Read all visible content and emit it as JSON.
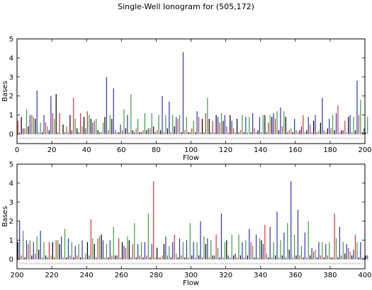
{
  "chart_data": {
    "title": "Single-Well Ionogram for (505,172)",
    "colors": {
      "T": "#e03030",
      "A": "#3ca03c",
      "C": "#000000",
      "G": "#3030c8"
    },
    "flow_order_seq": "TACG",
    "charts": [
      {
        "type": "bar",
        "xlabel": "Flow",
        "ylabel": "Bases",
        "xlim": [
          0,
          200
        ],
        "ylim": [
          -0.5,
          5
        ],
        "xticks": [
          0,
          20,
          40,
          60,
          80,
          100,
          120,
          140,
          160,
          180,
          200
        ],
        "yticks": [
          0,
          1,
          2,
          3,
          4,
          5
        ],
        "xtick_labels": [
          "0",
          "20",
          "40",
          "60",
          "80",
          "100",
          "120",
          "140",
          "160",
          "180",
          "200"
        ],
        "ytick_labels": [
          "0",
          "1",
          "2",
          "3",
          "4",
          "5"
        ],
        "values": [
          0.7,
          0.1,
          0.9,
          0.3,
          0.3,
          1.3,
          0.4,
          1.0,
          1.0,
          0.9,
          0.8,
          2.3,
          0.1,
          0.6,
          0.1,
          1.0,
          0.6,
          0.4,
          0.2,
          2.0,
          1.1,
          0.8,
          2.1,
          0.1,
          1.1,
          0.0,
          0.5,
          0.1,
          0.4,
          0.1,
          1.0,
          0.2,
          1.9,
          0.8,
          0.3,
          0.1,
          1.1,
          0.4,
          0.9,
          0.3,
          1.2,
          1.0,
          0.8,
          0.6,
          0.7,
          0.8,
          0.2,
          0.1,
          0.1,
          0.6,
          0.9,
          3.0,
          0.2,
          1.0,
          0.8,
          2.4,
          0.2,
          0.1,
          0.1,
          0.5,
          0.2,
          1.3,
          0.3,
          1.0,
          0.1,
          2.1,
          0.2,
          0.1,
          0.3,
          0.8,
          0.1,
          0.1,
          0.2,
          1.1,
          0.2,
          0.3,
          0.3,
          1.1,
          0.4,
          0.1,
          0.2,
          1.0,
          0.2,
          2.0,
          0.1,
          1.0,
          0.3,
          1.7,
          0.1,
          1.0,
          0.4,
          0.9,
          0.8,
          1.0,
          0.1,
          4.3,
          0.2,
          0.9,
          0.1,
          0.1,
          0.3,
          0.7,
          0.1,
          1.2,
          0.9,
          0.1,
          0.8,
          0.1,
          1.1,
          1.9,
          0.8,
          0.1,
          0.7,
          0.1,
          1.0,
          0.9,
          0.6,
          1.1,
          0.7,
          1.0,
          0.4,
          0.1,
          1.0,
          0.7,
          0.3,
          0.1,
          0.8,
          0.1,
          0.2,
          1.0,
          0.1,
          0.9,
          0.1,
          0.9,
          0.1,
          1.1,
          0.3,
          0.1,
          0.2,
          0.9,
          0.1,
          1.0,
          1.0,
          0.1,
          0.6,
          1.0,
          0.9,
          1.1,
          0.8,
          1.2,
          0.2,
          1.4,
          0.4,
          1.2,
          0.9,
          0.1,
          0.2,
          0.3,
          0.1,
          0.8,
          0.2,
          0.1,
          0.2,
          0.4,
          1.0,
          0.1,
          0.2,
          0.9,
          0.5,
          0.1,
          0.7,
          1.0,
          0.1,
          0.2,
          0.6,
          1.9,
          0.2,
          0.1,
          0.3,
          0.8,
          0.3,
          1.0,
          0.2,
          1.1,
          1.5,
          0.1,
          0.2,
          0.2,
          0.7,
          0.1,
          0.9,
          1.0,
          0.1,
          0.9,
          0.2,
          2.8,
          1.0,
          1.8,
          0.1,
          0.3,
          0.1,
          0.9
        ]
      },
      {
        "type": "bar",
        "xlabel": "Flow",
        "ylabel": "Bases",
        "xlim": [
          200,
          400
        ],
        "ylim": [
          -0.5,
          5
        ],
        "xticks": [
          200,
          220,
          240,
          260,
          280,
          300,
          320,
          340,
          360,
          380,
          400
        ],
        "yticks": [
          0,
          1,
          2,
          3,
          4,
          5
        ],
        "xtick_labels": [
          "200",
          "220",
          "240",
          "260",
          "280",
          "300",
          "320",
          "340",
          "360",
          "380",
          "400"
        ],
        "ytick_labels": [
          "0",
          "1",
          "2",
          "3",
          "4",
          "5"
        ],
        "values": [
          0.9,
          2.0,
          0.2,
          1.5,
          0.1,
          1.0,
          0.8,
          1.0,
          0.2,
          0.9,
          0.3,
          1.2,
          0.5,
          1.5,
          0.1,
          0.9,
          0.2,
          0.1,
          0.9,
          0.2,
          0.9,
          0.1,
          1.0,
          1.0,
          0.8,
          1.2,
          0.1,
          1.6,
          0.1,
          1.1,
          0.2,
          0.9,
          0.1,
          0.7,
          0.2,
          0.8,
          0.1,
          1.0,
          0.1,
          0.3,
          0.9,
          0.2,
          2.1,
          1.1,
          0.8,
          0.1,
          1.1,
          1.2,
          1.3,
          1.0,
          0.1,
          0.8,
          0.1,
          1.0,
          0.2,
          1.7,
          0.2,
          0.2,
          1.1,
          0.1,
          0.9,
          0.7,
          0.6,
          1.2,
          1.0,
          0.1,
          0.8,
          1.9,
          0.1,
          0.8,
          0.2,
          0.9,
          0.1,
          0.9,
          0.2,
          2.4,
          0.1,
          0.8,
          4.1,
          0.1,
          0.6,
          0.1,
          0.1,
          0.2,
          0.8,
          1.2,
          0.2,
          0.7,
          0.1,
          0.9,
          1.3,
          0.3,
          0.1,
          1.1,
          0.2,
          0.9,
          0.1,
          1.0,
          0.1,
          1.9,
          0.2,
          0.9,
          0.1,
          0.9,
          0.2,
          2.0,
          0.1,
          1.2,
          0.8,
          1.1,
          0.1,
          1.0,
          0.2,
          0.2,
          1.3,
          0.6,
          0.1,
          2.4,
          0.1,
          0.9,
          1.0,
          0.2,
          0.1,
          1.3,
          0.2,
          0.3,
          0.1,
          1.3,
          0.2,
          0.9,
          0.1,
          1.0,
          0.2,
          1.6,
          0.9,
          0.7,
          0.1,
          1.3,
          0.1,
          1.1,
          1.0,
          0.8,
          1.8,
          0.3,
          0.1,
          1.7,
          0.1,
          0.9,
          0.2,
          2.5,
          0.1,
          1.0,
          0.2,
          1.4,
          0.1,
          1.9,
          0.5,
          4.1,
          0.1,
          1.3,
          0.2,
          2.6,
          0.2,
          0.7,
          0.1,
          1.4,
          0.1,
          2.0,
          0.2,
          0.6,
          0.4,
          0.5,
          0.1,
          0.9,
          0.2,
          0.9,
          0.1,
          0.8,
          0.2,
          0.9,
          0.1,
          0.1,
          2.4,
          1.1,
          0.1,
          1.7,
          0.2,
          0.9,
          0.3,
          0.8,
          0.6,
          0.4,
          0.2,
          0.5,
          1.3,
          0.9,
          0.1,
          0.9,
          0.1,
          0.1,
          0.2,
          0.2
        ]
      }
    ]
  }
}
